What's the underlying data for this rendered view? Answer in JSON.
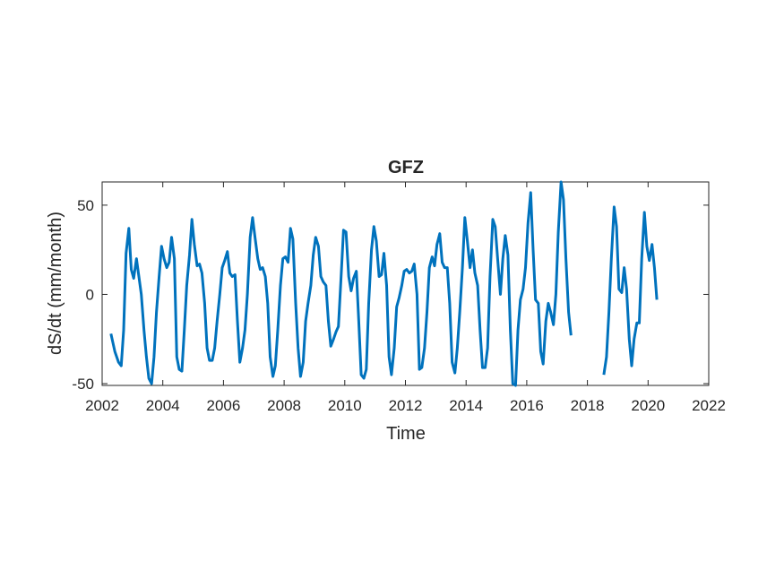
{
  "chart_data": {
    "type": "line",
    "title": "GFZ",
    "xlabel": "Time",
    "ylabel": "dS/dt (mm/month)",
    "xlim": [
      2002,
      2022
    ],
    "ylim": [
      -51,
      63
    ],
    "xticks": [
      2002,
      2004,
      2006,
      2008,
      2010,
      2012,
      2014,
      2016,
      2018,
      2020,
      2022
    ],
    "yticks": [
      -50,
      0,
      50
    ],
    "xtick_labels": [
      "2002",
      "2004",
      "2006",
      "2008",
      "2010",
      "2012",
      "2014",
      "2016",
      "2018",
      "2020",
      "2022"
    ],
    "ytick_labels": [
      "-50",
      "0",
      "50"
    ],
    "grid": false,
    "series": [
      {
        "color": "#0072BD",
        "segments": [
          [
            [
              2002.29,
              -22
            ],
            [
              2002.42,
              -32
            ],
            [
              2002.54,
              -38
            ],
            [
              2002.63,
              -40
            ],
            [
              2002.71,
              -20
            ],
            [
              2002.79,
              23
            ],
            [
              2002.88,
              37
            ],
            [
              2002.96,
              14
            ],
            [
              2003.04,
              9
            ],
            [
              2003.13,
              20
            ],
            [
              2003.21,
              10
            ],
            [
              2003.29,
              0
            ],
            [
              2003.38,
              -20
            ],
            [
              2003.46,
              -35
            ],
            [
              2003.54,
              -47
            ],
            [
              2003.63,
              -50
            ],
            [
              2003.71,
              -35
            ],
            [
              2003.79,
              -10
            ],
            [
              2003.88,
              10
            ],
            [
              2003.96,
              27
            ],
            [
              2004.04,
              20
            ],
            [
              2004.13,
              15
            ],
            [
              2004.21,
              18
            ],
            [
              2004.29,
              32
            ],
            [
              2004.38,
              20
            ],
            [
              2004.46,
              -35
            ],
            [
              2004.54,
              -42
            ],
            [
              2004.63,
              -43
            ],
            [
              2004.71,
              -20
            ],
            [
              2004.79,
              5
            ],
            [
              2004.88,
              22
            ],
            [
              2004.96,
              42
            ],
            [
              2005.04,
              28
            ],
            [
              2005.13,
              16
            ],
            [
              2005.21,
              17
            ],
            [
              2005.29,
              12
            ],
            [
              2005.38,
              -5
            ],
            [
              2005.46,
              -30
            ],
            [
              2005.54,
              -37
            ],
            [
              2005.63,
              -37
            ],
            [
              2005.71,
              -30
            ],
            [
              2005.79,
              -15
            ],
            [
              2005.88,
              0
            ],
            [
              2005.96,
              15
            ],
            [
              2006.04,
              19
            ],
            [
              2006.13,
              24
            ],
            [
              2006.21,
              12
            ],
            [
              2006.29,
              10
            ],
            [
              2006.38,
              11
            ],
            [
              2006.46,
              -15
            ],
            [
              2006.54,
              -38
            ],
            [
              2006.63,
              -30
            ],
            [
              2006.71,
              -20
            ],
            [
              2006.79,
              0
            ],
            [
              2006.88,
              32
            ],
            [
              2006.96,
              43
            ],
            [
              2007.04,
              32
            ],
            [
              2007.13,
              20
            ],
            [
              2007.21,
              14
            ],
            [
              2007.29,
              15
            ],
            [
              2007.38,
              10
            ],
            [
              2007.46,
              -5
            ],
            [
              2007.54,
              -35
            ],
            [
              2007.63,
              -46
            ],
            [
              2007.71,
              -40
            ],
            [
              2007.79,
              -20
            ],
            [
              2007.88,
              5
            ],
            [
              2007.96,
              20
            ],
            [
              2008.04,
              21
            ],
            [
              2008.13,
              18
            ],
            [
              2008.21,
              37
            ],
            [
              2008.29,
              31
            ],
            [
              2008.38,
              -5
            ],
            [
              2008.46,
              -30
            ],
            [
              2008.54,
              -46
            ],
            [
              2008.63,
              -38
            ],
            [
              2008.71,
              -15
            ],
            [
              2008.79,
              -5
            ],
            [
              2008.88,
              5
            ],
            [
              2008.96,
              22
            ],
            [
              2009.04,
              32
            ],
            [
              2009.13,
              27
            ],
            [
              2009.21,
              10
            ],
            [
              2009.29,
              7
            ],
            [
              2009.38,
              5
            ],
            [
              2009.46,
              -15
            ],
            [
              2009.54,
              -29
            ],
            [
              2009.63,
              -25
            ],
            [
              2009.71,
              -21
            ],
            [
              2009.79,
              -18
            ],
            [
              2009.88,
              10
            ],
            [
              2009.96,
              36
            ],
            [
              2010.04,
              35
            ],
            [
              2010.13,
              10
            ],
            [
              2010.21,
              2
            ],
            [
              2010.29,
              9
            ],
            [
              2010.38,
              13
            ],
            [
              2010.46,
              -15
            ],
            [
              2010.54,
              -45
            ],
            [
              2010.63,
              -47
            ],
            [
              2010.71,
              -42
            ],
            [
              2010.79,
              -5
            ],
            [
              2010.88,
              25
            ],
            [
              2010.96,
              38
            ],
            [
              2011.04,
              30
            ],
            [
              2011.13,
              10
            ],
            [
              2011.21,
              11
            ],
            [
              2011.29,
              23
            ],
            [
              2011.38,
              5
            ],
            [
              2011.46,
              -35
            ],
            [
              2011.54,
              -45
            ],
            [
              2011.63,
              -30
            ],
            [
              2011.71,
              -7
            ],
            [
              2011.79,
              -2
            ],
            [
              2011.88,
              5
            ],
            [
              2011.96,
              13
            ],
            [
              2012.04,
              14
            ],
            [
              2012.13,
              12
            ],
            [
              2012.21,
              13
            ],
            [
              2012.29,
              17
            ],
            [
              2012.38,
              0
            ],
            [
              2012.46,
              -42
            ],
            [
              2012.54,
              -41
            ],
            [
              2012.63,
              -30
            ],
            [
              2012.71,
              -10
            ],
            [
              2012.79,
              15
            ],
            [
              2012.88,
              21
            ],
            [
              2012.96,
              16
            ],
            [
              2013.04,
              28
            ],
            [
              2013.13,
              34
            ],
            [
              2013.21,
              18
            ],
            [
              2013.29,
              15
            ],
            [
              2013.38,
              15
            ],
            [
              2013.46,
              -5
            ],
            [
              2013.54,
              -38
            ],
            [
              2013.63,
              -44
            ],
            [
              2013.71,
              -30
            ],
            [
              2013.79,
              -10
            ],
            [
              2013.88,
              15
            ],
            [
              2013.96,
              43
            ],
            [
              2014.04,
              30
            ],
            [
              2014.13,
              15
            ],
            [
              2014.21,
              25
            ],
            [
              2014.29,
              12
            ],
            [
              2014.38,
              5
            ],
            [
              2014.46,
              -20
            ],
            [
              2014.54,
              -41
            ],
            [
              2014.63,
              -41
            ],
            [
              2014.71,
              -30
            ],
            [
              2014.79,
              10
            ],
            [
              2014.88,
              42
            ],
            [
              2014.96,
              38
            ],
            [
              2015.04,
              20
            ],
            [
              2015.13,
              0
            ],
            [
              2015.21,
              20
            ],
            [
              2015.29,
              33
            ],
            [
              2015.38,
              22
            ],
            [
              2015.46,
              -20
            ],
            [
              2015.54,
              -50
            ],
            [
              2015.63,
              -51
            ],
            [
              2015.71,
              -20
            ],
            [
              2015.79,
              -3
            ],
            [
              2015.88,
              3
            ],
            [
              2015.96,
              15
            ],
            [
              2016.04,
              40
            ],
            [
              2016.13,
              57
            ],
            [
              2016.21,
              25
            ],
            [
              2016.29,
              -3
            ],
            [
              2016.38,
              -5
            ],
            [
              2016.46,
              -32
            ],
            [
              2016.54,
              -39
            ],
            [
              2016.63,
              -15
            ],
            [
              2016.71,
              -5
            ],
            [
              2016.79,
              -10
            ],
            [
              2016.88,
              -17
            ],
            [
              2016.96,
              0
            ],
            [
              2017.04,
              35
            ],
            [
              2017.13,
              63
            ],
            [
              2017.21,
              53
            ],
            [
              2017.29,
              20
            ],
            [
              2017.38,
              -10
            ],
            [
              2017.46,
              -23
            ]
          ],
          [
            [
              2018.54,
              -45
            ],
            [
              2018.63,
              -35
            ],
            [
              2018.71,
              -10
            ],
            [
              2018.79,
              20
            ],
            [
              2018.88,
              49
            ],
            [
              2018.96,
              38
            ],
            [
              2019.04,
              3
            ],
            [
              2019.13,
              1
            ],
            [
              2019.21,
              15
            ],
            [
              2019.29,
              3
            ],
            [
              2019.38,
              -25
            ],
            [
              2019.46,
              -40
            ],
            [
              2019.54,
              -25
            ],
            [
              2019.63,
              -16
            ],
            [
              2019.71,
              -16
            ],
            [
              2019.79,
              20
            ],
            [
              2019.88,
              46
            ],
            [
              2019.96,
              27
            ],
            [
              2020.04,
              19
            ],
            [
              2020.13,
              28
            ],
            [
              2020.21,
              15
            ],
            [
              2020.29,
              -3
            ]
          ]
        ]
      }
    ]
  }
}
